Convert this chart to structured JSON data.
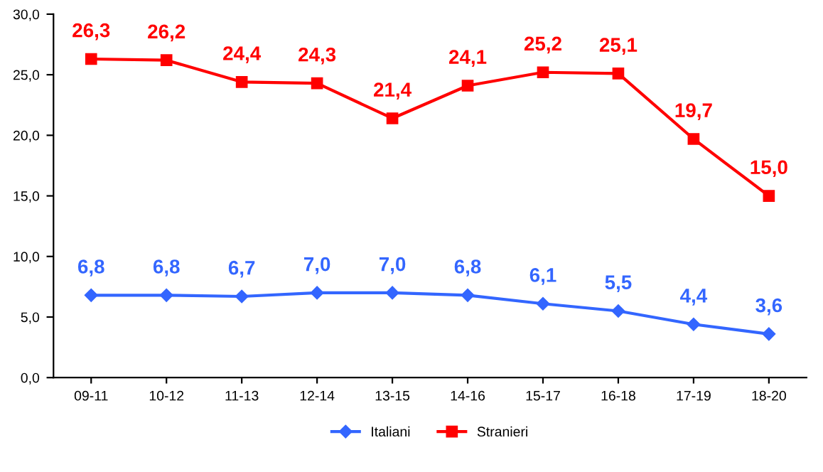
{
  "chart_data": {
    "type": "line",
    "categories": [
      "09-11",
      "10-12",
      "11-13",
      "12-14",
      "13-15",
      "14-16",
      "15-17",
      "16-18",
      "17-19",
      "18-20"
    ],
    "series": [
      {
        "name": "Italiani",
        "color": "#3366ff",
        "marker": "diamond",
        "values": [
          6.8,
          6.8,
          6.7,
          7.0,
          7.0,
          6.8,
          6.1,
          5.5,
          4.4,
          3.6
        ],
        "value_labels": [
          "6,8",
          "6,8",
          "6,7",
          "7,0",
          "7,0",
          "6,8",
          "6,1",
          "5,5",
          "4,4",
          "3,6"
        ]
      },
      {
        "name": "Stranieri",
        "color": "#ff0000",
        "marker": "square",
        "values": [
          26.3,
          26.2,
          24.4,
          24.3,
          21.4,
          24.1,
          25.2,
          25.1,
          19.7,
          15.0
        ],
        "value_labels": [
          "26,3",
          "26,2",
          "24,4",
          "24,3",
          "21,4",
          "24,1",
          "25,2",
          "25,1",
          "19,7",
          "15,0"
        ]
      }
    ],
    "ylim": [
      0,
      30
    ],
    "yticks": [
      {
        "value": 0,
        "label": "0,0"
      },
      {
        "value": 5,
        "label": "5,0"
      },
      {
        "value": 10,
        "label": "10,0"
      },
      {
        "value": 15,
        "label": "15,0"
      },
      {
        "value": 20,
        "label": "20,0"
      },
      {
        "value": 25,
        "label": "25,0"
      },
      {
        "value": 30,
        "label": "30,0"
      }
    ],
    "legend": "bottom"
  }
}
